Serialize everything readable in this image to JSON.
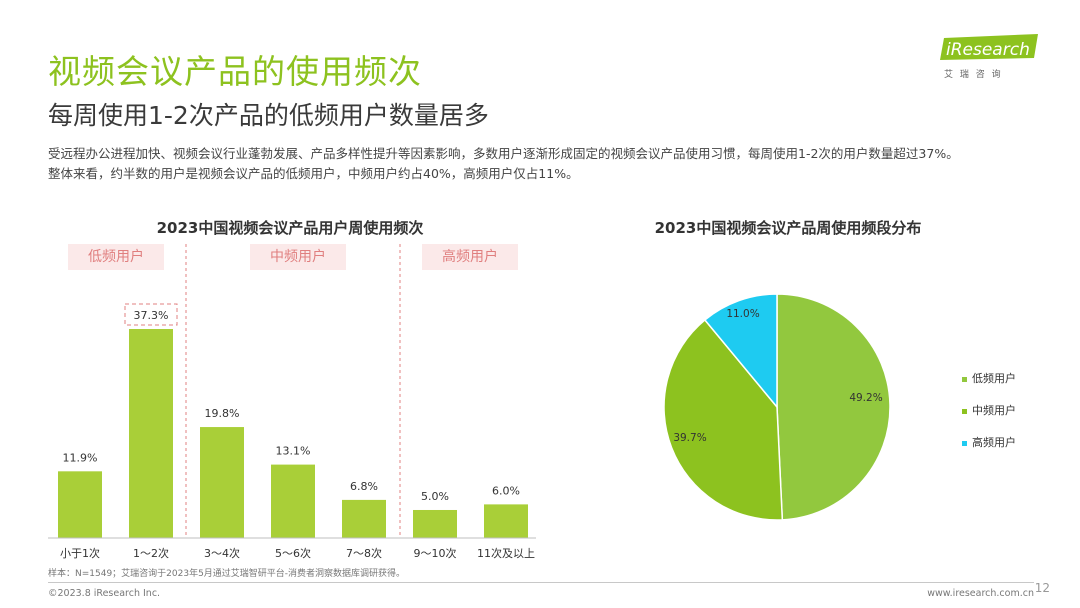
{
  "header": {
    "title": "视频会议产品的使用频次",
    "subtitle": "每周使用1-2次产品的低频用户数量居多",
    "desc_line1": "受远程办公进程加快、视频会议行业蓬勃发展、产品多样性提升等因素影响，多数用户逐渐形成固定的视频会议产品使用习惯，每周使用1-2次的用户数量超过37%。",
    "desc_line2": "整体来看，约半数的用户是视频会议产品的低频用户，中频用户约占40%，高频用户仅占11%。"
  },
  "logo": {
    "brand": "iResearch",
    "tagline": "艾 瑞 咨 询"
  },
  "segments": {
    "low": "低频用户",
    "mid": "中频用户",
    "high": "高频用户"
  },
  "colors": {
    "accent": "#8dc21f",
    "bar": "#a9cf38",
    "pie_low": "#92c83e",
    "pie_mid": "#8dc21f",
    "pie_high": "#1ecbf1",
    "highlight": "#e08080"
  },
  "chart_data": [
    {
      "type": "bar",
      "title": "2023中国视频会议产品用户周使用频次",
      "categories": [
        "小于1次",
        "1～2次",
        "3～4次",
        "5～6次",
        "7～8次",
        "9～10次",
        "11次及以上"
      ],
      "values": [
        11.9,
        37.3,
        19.8,
        13.1,
        6.8,
        5.0,
        6.0
      ],
      "labels": [
        "11.9%",
        "37.3%",
        "19.8%",
        "13.1%",
        "6.8%",
        "5.0%",
        "6.0%"
      ],
      "highlight_index": 1,
      "ylim": [
        0,
        40
      ]
    },
    {
      "type": "pie",
      "title": "2023中国视频会议产品周使用频段分布",
      "slices": [
        {
          "name": "低频用户",
          "value": 49.2,
          "label": "49.2%"
        },
        {
          "name": "中频用户",
          "value": 39.7,
          "label": "39.7%"
        },
        {
          "name": "高频用户",
          "value": 11.0,
          "label": "11.0%"
        }
      ],
      "legend": "right"
    }
  ],
  "source": "样本：N=1549；艾瑞咨询于2023年5月通过艾瑞智研平台-消费者洞察数据库调研获得。",
  "footer": {
    "copyright": "©2023.8 iResearch Inc.",
    "website": "www.iresearch.com.cn",
    "page": "12"
  }
}
